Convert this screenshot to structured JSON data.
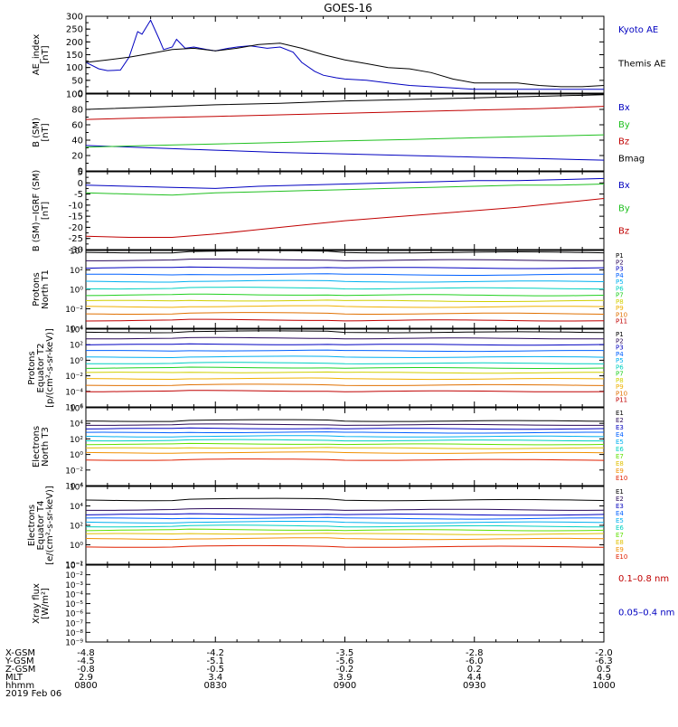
{
  "title": "GOES-16",
  "colors": {
    "p_palette": [
      "#000000",
      "#2a0a5a",
      "#0000c0",
      "#0060ff",
      "#00b0f0",
      "#00d0c0",
      "#20d020",
      "#d0d000",
      "#f0b000",
      "#e07000",
      "#c00000"
    ],
    "e_palette": [
      "#000000",
      "#2a0a5a",
      "#0000c0",
      "#0060ff",
      "#00b0f0",
      "#00d0c0",
      "#60e000",
      "#e0c000",
      "#f09000",
      "#e02000",
      "#c00000"
    ]
  },
  "panels": [
    {
      "id": "ae",
      "ylabel": [
        "AE_index",
        "[nT]"
      ],
      "scale": "linear",
      "ylim": [
        0,
        300
      ],
      "ticks": [
        "0",
        "50",
        "100",
        "150",
        "200",
        "250",
        "300"
      ],
      "tick_values": [
        0,
        50,
        100,
        150,
        200,
        250,
        300
      ],
      "labels": [
        {
          "text": "Kyoto AE",
          "color": "#0000c0"
        },
        {
          "text": "Themis AE",
          "color": "#000000"
        }
      ],
      "series": [
        {
          "name": "Kyoto AE",
          "color": "#0000c0",
          "t": [
            800,
            803,
            805,
            808,
            810,
            812,
            813,
            815,
            817,
            818,
            820,
            821,
            823,
            825,
            828,
            830,
            833,
            835,
            838,
            840,
            842,
            845,
            848,
            850,
            853,
            855,
            858,
            900,
            905,
            910,
            915,
            920,
            925,
            930,
            935,
            940,
            945,
            950,
            955,
            1000
          ],
          "v": [
            120,
            95,
            88,
            90,
            140,
            240,
            230,
            285,
            210,
            170,
            180,
            210,
            175,
            180,
            170,
            165,
            175,
            180,
            185,
            180,
            175,
            180,
            160,
            120,
            85,
            70,
            60,
            55,
            50,
            40,
            30,
            25,
            20,
            15,
            15,
            15,
            15,
            15,
            15,
            15
          ]
        },
        {
          "name": "Themis AE",
          "color": "#000000",
          "t": [
            800,
            805,
            810,
            815,
            820,
            825,
            830,
            835,
            840,
            845,
            850,
            855,
            900,
            905,
            910,
            915,
            920,
            925,
            930,
            935,
            940,
            945,
            950,
            955,
            1000
          ],
          "v": [
            120,
            130,
            140,
            155,
            170,
            175,
            165,
            175,
            190,
            195,
            175,
            150,
            130,
            115,
            100,
            95,
            80,
            55,
            40,
            40,
            40,
            30,
            25,
            25,
            30
          ]
        }
      ]
    },
    {
      "id": "bsm",
      "ylabel": [
        "B (SM)",
        "[nT]"
      ],
      "scale": "linear",
      "ylim": [
        0,
        100
      ],
      "ticks": [
        "0",
        "20",
        "40",
        "60",
        "80",
        "100"
      ],
      "tick_values": [
        0,
        20,
        40,
        60,
        80,
        100
      ],
      "labels": [
        {
          "text": "Bx",
          "color": "#0000c0"
        },
        {
          "text": "By",
          "color": "#20c020"
        },
        {
          "text": "Bz",
          "color": "#c00000"
        },
        {
          "text": "Bmag",
          "color": "#000000"
        }
      ],
      "series": [
        {
          "name": "Bx",
          "color": "#0000c0",
          "t": [
            800,
            815,
            830,
            845,
            900,
            915,
            930,
            945,
            1000
          ],
          "v": [
            33,
            30,
            27,
            24,
            22,
            20,
            18,
            16,
            14
          ]
        },
        {
          "name": "By",
          "color": "#20c020",
          "t": [
            800,
            815,
            830,
            845,
            900,
            915,
            930,
            945,
            1000
          ],
          "v": [
            31,
            33,
            35,
            37,
            39,
            41,
            43,
            45,
            47
          ]
        },
        {
          "name": "Bz",
          "color": "#c00000",
          "t": [
            800,
            815,
            830,
            845,
            900,
            915,
            930,
            945,
            1000
          ],
          "v": [
            67,
            69,
            71,
            73,
            75,
            77,
            79,
            81,
            84
          ]
        },
        {
          "name": "Bmag",
          "color": "#000000",
          "t": [
            800,
            815,
            830,
            845,
            900,
            915,
            930,
            945,
            1000
          ],
          "v": [
            80,
            83,
            86,
            88,
            91,
            93,
            95,
            97,
            99
          ]
        }
      ]
    },
    {
      "id": "bigrf",
      "ylabel": [
        "B (SM)−IGRF (SM)",
        "[nT]"
      ],
      "scale": "linear",
      "ylim": [
        -30,
        5
      ],
      "ticks": [
        "-30",
        "-25",
        "-20",
        "-15",
        "-10",
        "-5",
        "0",
        "5"
      ],
      "tick_values": [
        -30,
        -25,
        -20,
        -15,
        -10,
        -5,
        0,
        5
      ],
      "labels": [
        {
          "text": "Bx",
          "color": "#0000c0"
        },
        {
          "text": "By",
          "color": "#20c020"
        },
        {
          "text": "Bz",
          "color": "#c00000"
        }
      ],
      "series": [
        {
          "name": "Bx",
          "color": "#0000c0",
          "t": [
            800,
            810,
            820,
            830,
            840,
            850,
            900,
            910,
            920,
            930,
            940,
            950,
            1000
          ],
          "v": [
            -1,
            -1.5,
            -2,
            -2.5,
            -1.5,
            -1,
            -0.5,
            0,
            0.5,
            1,
            1,
            1.5,
            2
          ]
        },
        {
          "name": "By",
          "color": "#20c020",
          "t": [
            800,
            810,
            820,
            830,
            840,
            850,
            900,
            910,
            920,
            930,
            940,
            950,
            1000
          ],
          "v": [
            -4.5,
            -5,
            -5.5,
            -4.5,
            -4,
            -3.5,
            -3,
            -2.5,
            -2,
            -1.5,
            -1,
            -1,
            -0.5
          ]
        },
        {
          "name": "Bz",
          "color": "#c00000",
          "t": [
            800,
            810,
            820,
            830,
            840,
            850,
            900,
            910,
            920,
            930,
            940,
            950,
            1000
          ],
          "v": [
            -24,
            -24.5,
            -24.5,
            -23,
            -21,
            -19,
            -17,
            -15.5,
            -14,
            -12.5,
            -11,
            -9,
            -7
          ]
        }
      ]
    },
    {
      "id": "pn",
      "ylabel": [
        "Protons",
        "North T1"
      ],
      "scale": "log",
      "ylim": [
        -4,
        4
      ],
      "ticks": [
        "10⁻⁴",
        "10⁻²",
        "10⁰",
        "10²",
        "10⁴"
      ],
      "tick_values": [
        -4,
        -2,
        0,
        2,
        4
      ],
      "channels": [
        "P1",
        "P2",
        "P3",
        "P4",
        "P5",
        "P6",
        "P7",
        "P8",
        "P9",
        "P10",
        "P11"
      ],
      "series_log": [
        3.8,
        3.0,
        2.2,
        1.5,
        0.8,
        0.1,
        -0.6,
        -1.2,
        -1.8,
        -2.5,
        -3.2
      ]
    },
    {
      "id": "pe",
      "ylabel": [
        "Protons",
        "Equator T2",
        "[p/(cm²-s-sr-keV)]"
      ],
      "scale": "log",
      "ylim": [
        -6,
        4
      ],
      "ticks": [
        "10⁻⁶",
        "10⁻⁴",
        "10⁻²",
        "10⁰",
        "10²",
        "10⁴"
      ],
      "tick_values": [
        -6,
        -4,
        -2,
        0,
        2,
        4
      ],
      "channels": [
        "P1",
        "P2",
        "P3",
        "P4",
        "P5",
        "P6",
        "P7",
        "P8",
        "P9",
        "P10",
        "P11"
      ],
      "series_log": [
        3.6,
        2.8,
        2.0,
        1.2,
        0.4,
        -0.4,
        -1.0,
        -1.6,
        -2.4,
        -3.2,
        -4.0
      ]
    },
    {
      "id": "en",
      "ylabel": [
        "Electrons",
        "North T3"
      ],
      "scale": "log",
      "ylim": [
        -4,
        6
      ],
      "ticks": [
        "10⁻⁴",
        "10⁻²",
        "10⁰",
        "10²",
        "10⁴",
        "10⁶"
      ],
      "tick_values": [
        -4,
        -2,
        0,
        2,
        4,
        6
      ],
      "channels": [
        "E1",
        "E2",
        "E3",
        "E4",
        "E5",
        "E6",
        "E7",
        "E8",
        "E9",
        "E10"
      ],
      "series_log": [
        4.3,
        3.8,
        3.3,
        2.8,
        2.3,
        1.8,
        1.3,
        0.8,
        0.2,
        -0.7
      ]
    },
    {
      "id": "ee",
      "ylabel": [
        "Electrons",
        "Equator T4",
        "[e/(cm²-s-sr-keV)]"
      ],
      "scale": "log",
      "ylim": [
        -2,
        6
      ],
      "ticks": [
        "10⁻²",
        "10⁰",
        "10²",
        "10⁴",
        "10⁶"
      ],
      "tick_values": [
        -2,
        0,
        2,
        4,
        6
      ],
      "channels": [
        "E1",
        "E2",
        "E3",
        "E4",
        "E5",
        "E6",
        "E7",
        "E8",
        "E9",
        "E10"
      ],
      "series_log": [
        4.6,
        3.6,
        3.1,
        2.7,
        2.3,
        1.9,
        1.5,
        1.1,
        0.6,
        -0.2
      ]
    },
    {
      "id": "xray",
      "ylabel": [
        "Xray flux",
        "[W/m²]"
      ],
      "scale": "log",
      "ylim": [
        -9,
        -1
      ],
      "ticks": [
        "10⁻⁹",
        "10⁻⁸",
        "10⁻⁷",
        "10⁻⁶",
        "10⁻⁵",
        "10⁻⁴",
        "10⁻³",
        "10⁻²",
        "10⁻¹"
      ],
      "tick_values": [
        -9,
        -8,
        -7,
        -6,
        -5,
        -4,
        -3,
        -2,
        -1
      ],
      "labels": [
        {
          "text": "0.1–0.8 nm",
          "color": "#c00000"
        },
        {
          "text": "0.05–0.4 nm",
          "color": "#0000c0"
        }
      ]
    }
  ],
  "xaxis": {
    "rows": [
      {
        "label": "X-GSM",
        "values": [
          "-4.8",
          "-4.2",
          "-3.5",
          "-2.8",
          "-2.0"
        ]
      },
      {
        "label": "Y-GSM",
        "values": [
          "-4.5",
          "-5.1",
          "-5.6",
          "-6.0",
          "-6.3"
        ]
      },
      {
        "label": "Z-GSM",
        "values": [
          "-0.8",
          "-0.5",
          "-0.2",
          "0.2",
          "0.5"
        ]
      },
      {
        "label": "MLT",
        "values": [
          "2.9",
          "3.4",
          "3.9",
          "4.4",
          "4.9"
        ]
      },
      {
        "label": "hhmm",
        "values": [
          "0800",
          "0830",
          "0900",
          "0930",
          "1000"
        ]
      }
    ],
    "date": "2019 Feb 06"
  },
  "chart_data": {
    "type": "line",
    "title": "GOES-16",
    "x_range": [
      "0800",
      "1000"
    ],
    "date": "2019 Feb 06",
    "panels": [
      {
        "name": "AE_index [nT]",
        "ylim": [
          0,
          300
        ],
        "series": [
          {
            "name": "Kyoto AE"
          },
          {
            "name": "Themis AE"
          }
        ]
      },
      {
        "name": "B (SM) [nT]",
        "ylim": [
          0,
          100
        ],
        "series": [
          {
            "name": "Bx"
          },
          {
            "name": "By"
          },
          {
            "name": "Bz"
          },
          {
            "name": "Bmag"
          }
        ]
      },
      {
        "name": "B (SM)-IGRF (SM) [nT]",
        "ylim": [
          -30,
          5
        ],
        "series": [
          {
            "name": "Bx"
          },
          {
            "name": "By"
          },
          {
            "name": "Bz"
          }
        ]
      },
      {
        "name": "Protons North T1",
        "scale": "log",
        "ylim": [
          0.0001,
          10000
        ]
      },
      {
        "name": "Protons Equator T2",
        "scale": "log",
        "ylim": [
          1e-06,
          10000
        ]
      },
      {
        "name": "Electrons North T3",
        "scale": "log",
        "ylim": [
          0.0001,
          1000000
        ]
      },
      {
        "name": "Electrons Equator T4",
        "scale": "log",
        "ylim": [
          0.01,
          1000000
        ]
      },
      {
        "name": "Xray flux [W/m2]",
        "scale": "log",
        "ylim": [
          1e-09,
          0.1
        ]
      }
    ]
  }
}
